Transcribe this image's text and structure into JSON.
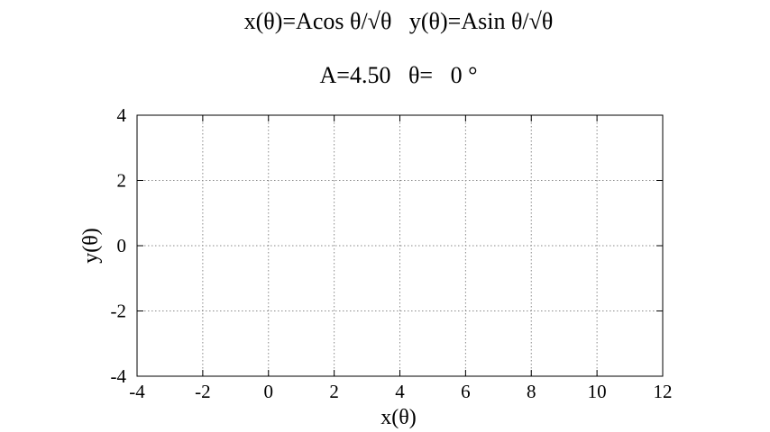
{
  "chart_data": {
    "type": "line",
    "title": "x(θ)=Acos θ/√θ   y(θ)=Asin θ/√θ",
    "subtitle": "A=4.50   θ=   0 °",
    "xlabel": "x(θ)",
    "ylabel": "y(θ)",
    "xlim": [
      -4,
      12
    ],
    "ylim": [
      -4,
      4
    ],
    "xticks": [
      -4,
      -2,
      0,
      2,
      4,
      6,
      8,
      10,
      12
    ],
    "yticks": [
      -4,
      -2,
      0,
      2,
      4
    ],
    "xtick_labels": [
      "-4",
      "-2",
      "0",
      "2",
      "4",
      "6",
      "8",
      "10",
      "12"
    ],
    "ytick_labels": [
      "-4",
      "-2",
      "0",
      "2",
      "4"
    ],
    "grid": true,
    "series": []
  }
}
